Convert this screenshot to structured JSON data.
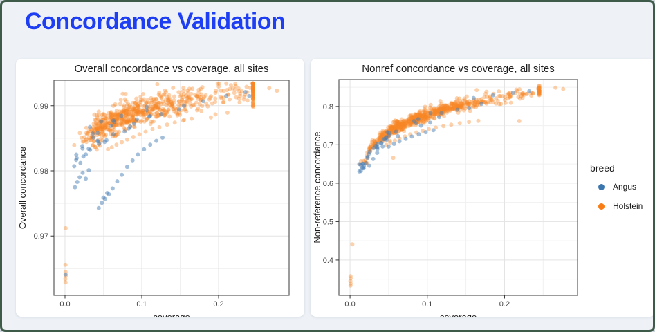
{
  "page": {
    "title": "Concordance Validation",
    "title_color": "#1d3ef2",
    "background": "#eef2f7",
    "border_color": "#3e5b49"
  },
  "legend": {
    "title": "breed",
    "items": [
      {
        "label": "Angus",
        "color": "#3c76af"
      },
      {
        "label": "Holstein",
        "color": "#f97d16"
      }
    ]
  },
  "chart_data": [
    {
      "type": "scatter",
      "title": "Overall concordance vs coverage, all sites",
      "xlabel": "coverage",
      "ylabel": "Overall concordance",
      "xlim": [
        -0.0144,
        0.2919
      ],
      "ylim": [
        0.9609,
        0.9939
      ],
      "xticks": [
        0.0,
        0.1,
        0.2
      ],
      "xtick_labels": [
        "0.0",
        "0.1",
        "0.2"
      ],
      "yticks": [
        0.97,
        0.98,
        0.99
      ],
      "ytick_labels": [
        "0.97",
        "0.98",
        "0.99"
      ],
      "x_minor": [
        0.05,
        0.15,
        0.25
      ],
      "y_minor": [
        0.965,
        0.975,
        0.985
      ],
      "grid": true,
      "legend_position": "right-card",
      "series": [
        {
          "name": "Holstein",
          "color": "#f68524",
          "opacity": 0.38,
          "cloud": {
            "n": 660,
            "seed": 11,
            "log10x_mean": -1.02,
            "log10x_sd": 0.26,
            "x_clamp": [
              0.012,
              0.245
            ],
            "y_clamp": [
              0.9615,
              0.9934
            ],
            "trend": {
              "ref_x": 0.27,
              "y_at_ref": 0.9925,
              "slope_per_decade": 0.0075
            },
            "y_sd": 0.0011,
            "y_offset": 0
          },
          "points": [
            [
              0.056,
              0.9833
            ],
            [
              0.061,
              0.9836
            ],
            [
              0.067,
              0.984
            ],
            [
              0.074,
              0.9844
            ],
            [
              0.081,
              0.9848
            ],
            [
              0.089,
              0.9852
            ],
            [
              0.097,
              0.9856
            ],
            [
              0.105,
              0.986
            ],
            [
              0.114,
              0.9864
            ],
            [
              0.123,
              0.9867
            ],
            [
              0.133,
              0.9871
            ],
            [
              0.143,
              0.9874
            ],
            [
              0.154,
              0.9877
            ],
            [
              0.165,
              0.988
            ],
            [
              0.13,
              0.9886
            ],
            [
              0.145,
              0.9889
            ],
            [
              0.158,
              0.9891
            ],
            [
              0.172,
              0.9893
            ],
            [
              0.19,
              0.9882
            ],
            [
              0.0008,
              0.9712
            ],
            [
              0.0006,
              0.9656
            ],
            [
              0.0007,
              0.9645
            ],
            [
              0.0009,
              0.9639
            ],
            [
              0.0005,
              0.9634
            ],
            [
              0.0007,
              0.9629
            ],
            [
              0.266,
              0.9927
            ],
            [
              0.276,
              0.9923
            ]
          ]
        },
        {
          "name": "Angus",
          "color": "#4a7fb5",
          "opacity": 0.5,
          "cloud": {
            "n": 38,
            "seed": 21,
            "log10x_mean": -1.33,
            "log10x_sd": 0.3,
            "x_clamp": [
              0.012,
              0.24
            ],
            "y_clamp": [
              0.9615,
              0.9934
            ],
            "trend": {
              "ref_x": 0.27,
              "y_at_ref": 0.9925,
              "slope_per_decade": 0.0075
            },
            "y_sd": 0.0013,
            "y_offset": -0.0013
          },
          "points": [
            [
              0.044,
              0.9743
            ],
            [
              0.048,
              0.9751
            ],
            [
              0.052,
              0.9757
            ],
            [
              0.057,
              0.9764
            ],
            [
              0.062,
              0.9773
            ],
            [
              0.068,
              0.9784
            ],
            [
              0.074,
              0.9794
            ],
            [
              0.081,
              0.9806
            ],
            [
              0.088,
              0.9816
            ],
            [
              0.095,
              0.9825
            ],
            [
              0.103,
              0.9833
            ],
            [
              0.111,
              0.984
            ],
            [
              0.119,
              0.9846
            ],
            [
              0.127,
              0.9851
            ],
            [
              0.013,
              0.9775
            ],
            [
              0.016,
              0.9783
            ],
            [
              0.019,
              0.979
            ],
            [
              0.023,
              0.9797
            ],
            [
              0.027,
              0.9788
            ],
            [
              0.031,
              0.9801
            ],
            [
              0.235,
              0.9921
            ],
            [
              0.21,
              0.9915
            ],
            [
              0.18,
              0.9907
            ],
            [
              0.155,
              0.99
            ],
            [
              0.05,
              0.9759
            ],
            [
              0.055,
              0.9766
            ],
            [
              0.0007,
              0.9641
            ]
          ]
        }
      ]
    },
    {
      "type": "scatter",
      "title": "Nonref concordance vs coverage, all sites",
      "xlabel": "coverage",
      "ylabel": "Non-reference concordance",
      "xlim": [
        -0.0144,
        0.2945
      ],
      "ylim": [
        0.308,
        0.87
      ],
      "xticks": [
        0.0,
        0.1,
        0.2
      ],
      "xtick_labels": [
        "0.0",
        "0.1",
        "0.2"
      ],
      "yticks": [
        0.4,
        0.5,
        0.6,
        0.7,
        0.8
      ],
      "ytick_labels": [
        "0.4",
        "0.5",
        "0.6",
        "0.7",
        "0.8"
      ],
      "x_minor": [
        0.05,
        0.15,
        0.25
      ],
      "y_minor": [
        0.35,
        0.45,
        0.55,
        0.65,
        0.75,
        0.85
      ],
      "grid": true,
      "legend_position": "right-card",
      "series": [
        {
          "name": "Holstein",
          "color": "#f68524",
          "opacity": 0.38,
          "cloud": {
            "n": 660,
            "seed": 31,
            "log10x_mean": -1.02,
            "log10x_sd": 0.26,
            "x_clamp": [
              0.012,
              0.245
            ],
            "y_clamp": [
              0.31,
              0.862
            ],
            "trend": {
              "ref_x": 0.27,
              "y_at_ref": 0.845,
              "slope_per_decade": 0.154
            },
            "y_sd": 0.008,
            "y_offset": 0
          },
          "points": [
            [
              0.047,
              0.7
            ],
            [
              0.052,
              0.7055
            ],
            [
              0.058,
              0.711
            ],
            [
              0.064,
              0.7165
            ],
            [
              0.071,
              0.722
            ],
            [
              0.078,
              0.727
            ],
            [
              0.086,
              0.732
            ],
            [
              0.094,
              0.7365
            ],
            [
              0.102,
              0.741
            ],
            [
              0.111,
              0.745
            ],
            [
              0.121,
              0.749
            ],
            [
              0.131,
              0.7525
            ],
            [
              0.142,
              0.756
            ],
            [
              0.154,
              0.7595
            ],
            [
              0.166,
              0.7625
            ],
            [
              0.219,
              0.762
            ],
            [
              0.056,
              0.666
            ],
            [
              0.266,
              0.849
            ],
            [
              0.276,
              0.8455
            ],
            [
              0.003,
              0.441
            ],
            [
              0.0006,
              0.358
            ],
            [
              0.0008,
              0.3525
            ],
            [
              0.0005,
              0.3455
            ],
            [
              0.0007,
              0.339
            ],
            [
              0.0006,
              0.3335
            ]
          ]
        },
        {
          "name": "Angus",
          "color": "#4a7fb5",
          "opacity": 0.5,
          "cloud": {
            "n": 42,
            "seed": 41,
            "log10x_mean": -1.28,
            "log10x_sd": 0.3,
            "x_clamp": [
              0.012,
              0.24
            ],
            "y_clamp": [
              0.31,
              0.862
            ],
            "trend": {
              "ref_x": 0.27,
              "y_at_ref": 0.845,
              "slope_per_decade": 0.154
            },
            "y_sd": 0.009,
            "y_offset": -0.012
          },
          "points": [
            [
              0.05,
              0.6955
            ],
            [
              0.057,
              0.7025
            ],
            [
              0.064,
              0.709
            ],
            [
              0.072,
              0.7155
            ],
            [
              0.08,
              0.7215
            ],
            [
              0.089,
              0.7275
            ],
            [
              0.098,
              0.733
            ],
            [
              0.108,
              0.738
            ],
            [
              0.014,
              0.6315
            ],
            [
              0.016,
              0.639
            ],
            [
              0.018,
              0.6455
            ],
            [
              0.021,
              0.652
            ],
            [
              0.025,
              0.6455
            ],
            [
              0.03,
              0.663
            ],
            [
              0.232,
              0.8395
            ],
            [
              0.211,
              0.8355
            ],
            [
              0.185,
              0.829
            ],
            [
              0.16,
              0.822
            ]
          ]
        }
      ]
    }
  ]
}
